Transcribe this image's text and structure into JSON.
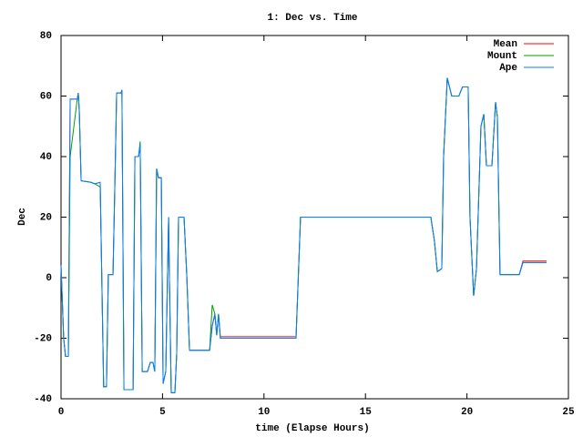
{
  "chart_data": {
    "type": "line",
    "title": "1: Dec vs. Time",
    "x_label": "time (Elapse Hours)",
    "y_label": "Dec",
    "x": [
      0,
      0.13,
      0.22,
      0.36,
      0.45,
      0.8,
      0.85,
      0.9,
      0.99,
      1.48,
      1.66,
      1.93,
      1.97,
      2.1,
      2.24,
      2.33,
      2.56,
      2.65,
      2.74,
      2.96,
      3.0,
      3.1,
      3.55,
      3.64,
      3.82,
      3.9,
      4.0,
      4.26,
      4.4,
      4.53,
      4.62,
      4.71,
      4.8,
      4.94,
      5.03,
      5.16,
      5.3,
      5.34,
      5.43,
      5.61,
      5.7,
      5.79,
      6.06,
      6.2,
      6.33,
      7.32,
      7.45,
      7.58,
      7.67,
      7.76,
      7.85,
      11.58,
      11.8,
      18.22,
      18.4,
      18.54,
      18.76,
      18.85,
      19.03,
      19.25,
      19.6,
      19.78,
      20.06,
      20.15,
      20.33,
      20.47,
      20.69,
      20.83,
      20.96,
      21.23,
      21.41,
      21.5,
      21.63,
      22.58,
      22.76,
      23.92
    ],
    "series": [
      {
        "name": "Mean",
        "color": "#ff0000",
        "values": [
          4,
          -20,
          -26,
          -26,
          59,
          59,
          61,
          55,
          32,
          31.5,
          31,
          31.5,
          15,
          -36,
          -36,
          1,
          1,
          30,
          61,
          61,
          62,
          -37,
          -37,
          40,
          40,
          44,
          -31,
          -31,
          -28,
          -28,
          -31,
          36,
          33,
          33,
          -35,
          -31,
          20,
          0,
          -38,
          -38,
          -25,
          20,
          20,
          0,
          -24,
          -24,
          -16,
          -12,
          -19,
          -12,
          -19.5,
          -19.5,
          20,
          20,
          12,
          2,
          3,
          40,
          66,
          60,
          60,
          63,
          63,
          20,
          -6,
          3,
          50,
          54,
          37,
          37,
          58,
          53,
          1,
          1,
          5.5,
          5.5
        ]
      },
      {
        "name": "Mount",
        "color": "#00a000",
        "values": [
          4,
          -20,
          -26,
          -26,
          40,
          59,
          61,
          55,
          32,
          31.5,
          31,
          30,
          15,
          -36,
          -36,
          1,
          1,
          30,
          61,
          61,
          62,
          -37,
          -37,
          40,
          40,
          45,
          -31,
          -31,
          -28,
          -28,
          -31,
          36,
          33,
          33,
          -35,
          -31,
          20,
          0,
          -38,
          -38,
          -25,
          20,
          20,
          0,
          -24,
          -24,
          -9,
          -12,
          -19,
          -12,
          -20,
          -20,
          20,
          20,
          12,
          2,
          3,
          40,
          66,
          60,
          60,
          63,
          63,
          20,
          -6,
          3,
          50,
          54,
          37,
          37,
          58,
          53,
          1,
          1,
          5,
          5
        ]
      },
      {
        "name": "Ape",
        "color": "#0080ff",
        "values": [
          4,
          -20,
          -26,
          -26,
          59,
          59,
          61,
          55,
          32,
          31.5,
          31,
          31.5,
          15,
          -36,
          -36,
          1,
          1,
          30,
          61,
          61,
          62,
          -37,
          -37,
          40,
          40,
          44,
          -31,
          -31,
          -28,
          -28,
          -31,
          36,
          33,
          33,
          -35,
          -31,
          20,
          0,
          -38,
          -38,
          -25,
          20,
          20,
          0,
          -24,
          -24,
          -16,
          -12,
          -19,
          -12,
          -20,
          -20,
          20,
          20,
          12,
          2,
          3,
          40,
          66,
          60,
          60,
          63,
          63,
          20,
          -6,
          3,
          50,
          54,
          37,
          37,
          58,
          53,
          1,
          1,
          5,
          5
        ]
      }
    ],
    "xlim": [
      0,
      25
    ],
    "xticks": [
      0,
      5,
      10,
      15,
      20,
      25
    ],
    "ylim": [
      -40,
      80
    ],
    "yticks": [
      -40,
      -20,
      0,
      20,
      40,
      60,
      80
    ],
    "legend": "top-right"
  }
}
